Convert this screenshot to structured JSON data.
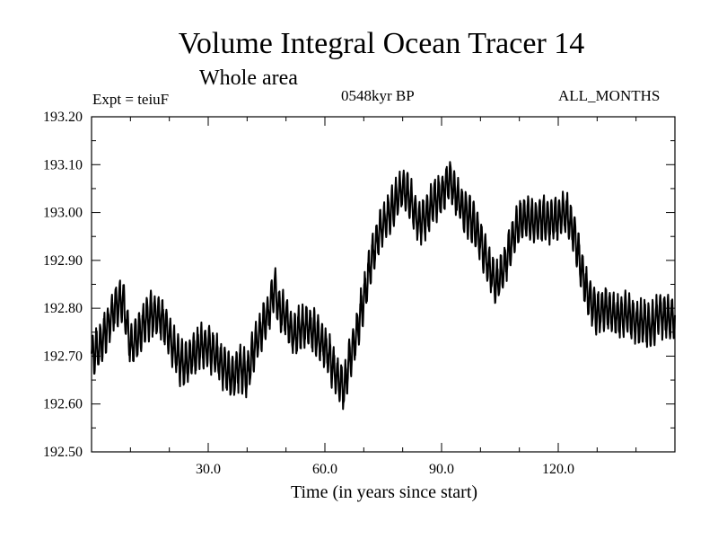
{
  "chart_data": {
    "type": "line",
    "title": "Volume Integral Ocean Tracer 14",
    "subtitle": "Whole area",
    "experiment_label": "Expt = teiuF",
    "period_label": "0548kyr BP",
    "months_label": "ALL_MONTHS",
    "xlabel": "Time (in years since start)",
    "ylabel": "",
    "xlim": [
      0,
      150
    ],
    "ylim": [
      192.5,
      193.2
    ],
    "x_ticks": [
      30,
      60,
      90,
      120
    ],
    "x_tick_labels": [
      "30.0",
      "60.0",
      "90.0",
      "120.0"
    ],
    "x_minor_ticks": [
      10,
      20,
      40,
      50,
      70,
      80,
      100,
      110,
      130,
      140
    ],
    "y_ticks": [
      192.5,
      192.6,
      192.7,
      192.8,
      192.9,
      193.0,
      193.1,
      193.2
    ],
    "y_tick_labels": [
      "192.50",
      "192.60",
      "192.70",
      "192.80",
      "192.90",
      "193.00",
      "193.10",
      "193.20"
    ],
    "grid": false,
    "series": [
      {
        "name": "Volume Integral Ocean Tracer 14",
        "color": "#000000",
        "oscillation_amplitude": 0.04,
        "oscillation_period_years": 1,
        "envelope": {
          "x": [
            0,
            2,
            4,
            6,
            8,
            10,
            12,
            14,
            16,
            18,
            20,
            22,
            24,
            26,
            28,
            30,
            32,
            34,
            36,
            38,
            40,
            42,
            44,
            46,
            47,
            48,
            50,
            52,
            54,
            56,
            58,
            60,
            62,
            64,
            65,
            66,
            68,
            70,
            72,
            74,
            76,
            78,
            80,
            82,
            84,
            86,
            88,
            90,
            92,
            94,
            96,
            98,
            100,
            102,
            104,
            106,
            108,
            110,
            112,
            114,
            116,
            118,
            120,
            122,
            124,
            126,
            128,
            130,
            132,
            134,
            136,
            138,
            140,
            142,
            144,
            146,
            148,
            150
          ],
          "y": [
            192.7,
            192.72,
            192.76,
            192.8,
            192.82,
            192.72,
            192.74,
            192.78,
            192.79,
            192.78,
            192.74,
            192.7,
            192.68,
            192.7,
            192.72,
            192.72,
            192.7,
            192.68,
            192.65,
            192.68,
            192.66,
            192.72,
            192.76,
            192.8,
            192.85,
            192.8,
            192.78,
            192.74,
            192.76,
            192.76,
            192.74,
            192.72,
            192.68,
            192.64,
            192.63,
            192.68,
            192.74,
            192.82,
            192.9,
            192.96,
            192.99,
            193.02,
            193.05,
            193.03,
            192.98,
            192.99,
            193.02,
            193.04,
            193.07,
            193.03,
            193.0,
            192.98,
            192.94,
            192.89,
            192.85,
            192.88,
            192.94,
            192.98,
            192.99,
            192.98,
            192.99,
            192.98,
            192.99,
            193.0,
            192.96,
            192.88,
            192.82,
            192.79,
            192.8,
            192.79,
            192.78,
            192.79,
            192.77,
            192.77,
            192.76,
            192.79,
            192.78,
            192.78
          ]
        }
      }
    ]
  }
}
